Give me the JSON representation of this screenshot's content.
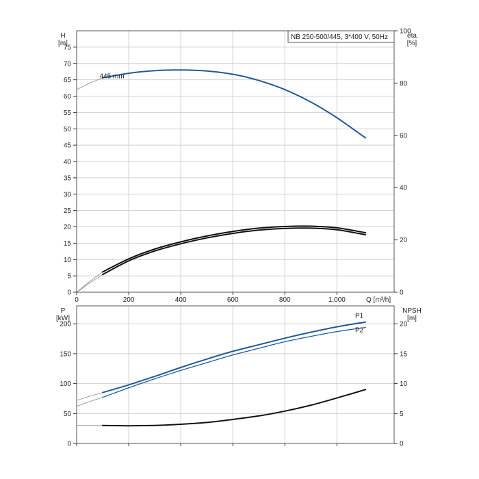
{
  "title_box": "NB 250-500/445, 3*400 V, 50Hz",
  "colors": {
    "blue": "#1f5a96",
    "black": "#111111",
    "grid": "#cfcfcf",
    "frame": "#555555"
  },
  "chart_data": [
    {
      "type": "line",
      "panel": "top",
      "ylabel_left": [
        "H",
        "[m]"
      ],
      "ylabel_right": [
        "eta",
        "[%]"
      ],
      "xlabel": "Q [m³/h]",
      "xlim": [
        0,
        1220
      ],
      "ylim_left": [
        0,
        80
      ],
      "ylim_right": [
        0,
        100
      ],
      "x_ticks": [
        {
          "v": 0,
          "label": "0"
        },
        {
          "v": 200,
          "label": "200"
        },
        {
          "v": 400,
          "label": "400"
        },
        {
          "v": 600,
          "label": "600"
        },
        {
          "v": 800,
          "label": "800"
        },
        {
          "v": 1000,
          "label": "1,000"
        }
      ],
      "left_ticks": [
        0,
        5,
        10,
        15,
        20,
        25,
        30,
        35,
        40,
        45,
        50,
        55,
        60,
        65,
        70,
        75
      ],
      "right_ticks": [
        0,
        20,
        40,
        60,
        80,
        100
      ],
      "series": [
        {
          "name": "445 mm",
          "axis": "left",
          "color": "#1f5a96",
          "width": 2,
          "x": [
            100,
            200,
            300,
            400,
            500,
            600,
            700,
            800,
            900,
            1000,
            1110
          ],
          "y": [
            65.6,
            67.0,
            67.8,
            68.0,
            67.7,
            66.7,
            64.8,
            62.0,
            58.2,
            53.4,
            47.2
          ]
        },
        {
          "name": "",
          "axis": "left",
          "color": "#111111",
          "width": 2,
          "x": [
            100,
            200,
            300,
            400,
            500,
            600,
            700,
            800,
            900,
            1000,
            1110
          ],
          "y": [
            6.2,
            10.2,
            13.2,
            15.4,
            17.2,
            18.6,
            19.6,
            20.1,
            20.2,
            19.7,
            18.2
          ]
        },
        {
          "name": "",
          "axis": "left",
          "color": "#111111",
          "width": 2,
          "x": [
            100,
            200,
            300,
            400,
            500,
            600,
            700,
            800,
            900,
            1000,
            1110
          ],
          "y": [
            5.4,
            9.6,
            12.6,
            14.8,
            16.6,
            18.0,
            19.0,
            19.5,
            19.6,
            19.1,
            17.6
          ]
        }
      ],
      "extrapolations": [
        {
          "axis": "left",
          "x": [
            0,
            50,
            100
          ],
          "y": [
            62.0,
            64.0,
            65.6
          ]
        },
        {
          "axis": "left",
          "x": [
            0,
            50,
            100
          ],
          "y": [
            0,
            3.3,
            6.2
          ]
        },
        {
          "axis": "left",
          "x": [
            0,
            50,
            100
          ],
          "y": [
            0,
            2.8,
            5.4
          ]
        }
      ],
      "annotations": [
        {
          "text": "445 mm",
          "x": 88,
          "y": 65.4
        }
      ]
    },
    {
      "type": "line",
      "panel": "bottom",
      "ylabel_left": [
        "P",
        "[kW]"
      ],
      "ylabel_right": [
        "NPSH",
        "[m]"
      ],
      "xlim": [
        0,
        1220
      ],
      "ylim_left": [
        0,
        230
      ],
      "ylim_right": [
        0,
        23
      ],
      "left_ticks": [
        0,
        50,
        100,
        150,
        200
      ],
      "right_ticks": [
        0,
        5,
        10,
        15,
        20
      ],
      "series": [
        {
          "name": "P1",
          "axis": "left",
          "color": "#1f5a96",
          "width": 2,
          "x": [
            100,
            200,
            300,
            400,
            500,
            600,
            700,
            800,
            900,
            1000,
            1110
          ],
          "y": [
            85,
            98,
            112,
            127,
            141,
            154,
            165,
            176,
            186,
            195,
            203
          ]
        },
        {
          "name": "P2",
          "axis": "left",
          "color": "#1f5a96",
          "width": 1.3,
          "x": [
            100,
            200,
            300,
            400,
            500,
            600,
            700,
            800,
            900,
            1000,
            1110
          ],
          "y": [
            77,
            93,
            108,
            122,
            135,
            148,
            159,
            170,
            179,
            187,
            194
          ]
        },
        {
          "name": "",
          "axis": "right",
          "color": "#111111",
          "width": 2,
          "x": [
            100,
            200,
            300,
            400,
            500,
            600,
            700,
            800,
            900,
            1000,
            1110
          ],
          "y": [
            3.0,
            2.95,
            3.0,
            3.2,
            3.5,
            4.0,
            4.6,
            5.4,
            6.4,
            7.6,
            9.0
          ]
        }
      ],
      "extrapolations": [
        {
          "axis": "left",
          "x": [
            0,
            50,
            100
          ],
          "y": [
            72,
            79,
            85
          ]
        },
        {
          "axis": "left",
          "x": [
            0,
            50,
            100
          ],
          "y": [
            62,
            70,
            77
          ]
        },
        {
          "axis": "right",
          "x": [
            0,
            50,
            100
          ],
          "y": [
            3.0,
            3.0,
            3.0
          ]
        }
      ],
      "annotations": [
        {
          "text": "P1",
          "x": 1070,
          "y": 210
        },
        {
          "text": "P2",
          "x": 1070,
          "y": 186
        }
      ]
    }
  ]
}
